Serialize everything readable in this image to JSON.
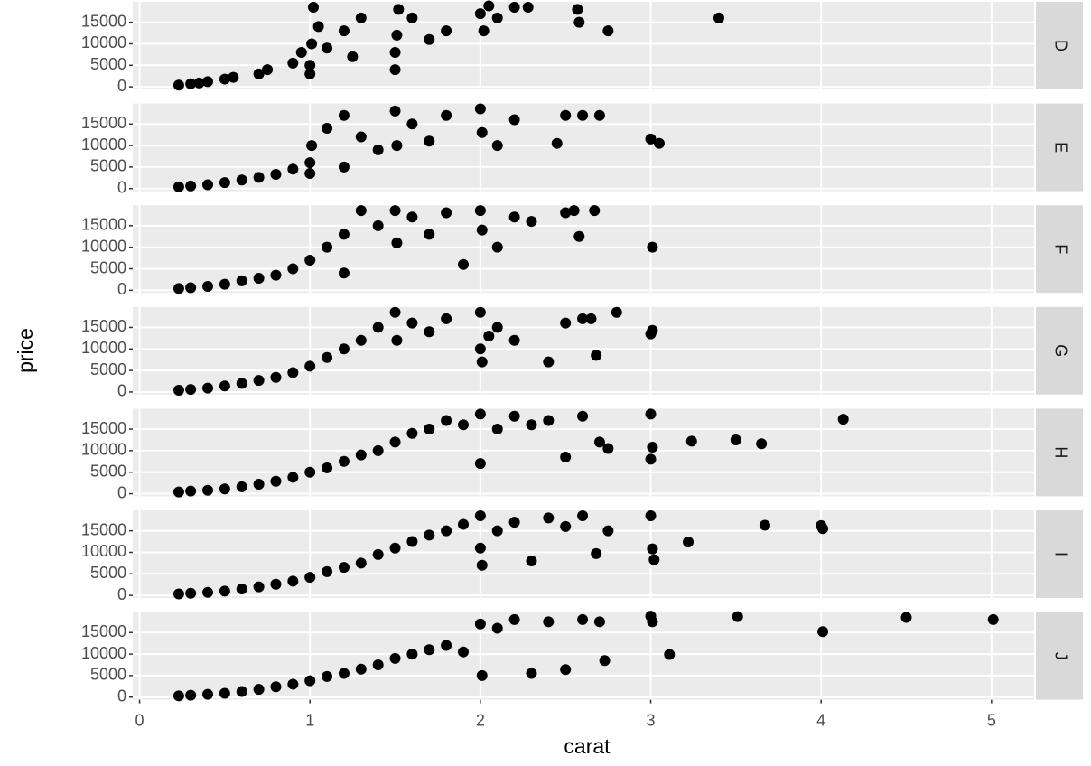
{
  "chart_data": {
    "type": "scatter",
    "xlabel": "carat",
    "ylabel": "price",
    "color": "#000000",
    "grid": true,
    "xlim": [
      -0.04,
      5.25
    ],
    "xticks": [
      0,
      1,
      2,
      3,
      4,
      5
    ],
    "ylim": [
      -599,
      19748
    ],
    "yticks": [
      0,
      5000,
      10000,
      15000
    ],
    "facets": [
      {
        "label": "D",
        "x": [
          0.23,
          0.3,
          0.35,
          0.4,
          0.5,
          0.55,
          0.7,
          0.75,
          0.9,
          0.95,
          1.0,
          1.01,
          1.02,
          1.05,
          1.1,
          1.2,
          1.25,
          1.3,
          1.5,
          1.51,
          1.52,
          1.6,
          1.7,
          1.8,
          2.0,
          2.02,
          2.05,
          2.1,
          2.2,
          2.28,
          2.57,
          2.58,
          2.75,
          3.4,
          1.0,
          1.5
        ],
        "values": [
          400,
          700,
          900,
          1200,
          1800,
          2200,
          3000,
          4000,
          5500,
          8000,
          5000,
          10000,
          18500,
          14000,
          9000,
          13000,
          7000,
          16000,
          4000,
          12000,
          18000,
          16000,
          11000,
          13000,
          17000,
          13000,
          18800,
          16000,
          18500,
          18500,
          18000,
          15000,
          13000,
          16000,
          3000,
          8000
        ]
      },
      {
        "label": "E",
        "x": [
          0.23,
          0.3,
          0.4,
          0.5,
          0.6,
          0.7,
          0.8,
          0.9,
          1.0,
          1.01,
          1.1,
          1.2,
          1.3,
          1.4,
          1.5,
          1.51,
          1.6,
          1.7,
          1.8,
          2.0,
          2.01,
          2.1,
          2.2,
          2.45,
          2.5,
          2.6,
          2.7,
          3.0,
          3.05,
          1.0,
          1.2
        ],
        "values": [
          400,
          600,
          900,
          1400,
          2000,
          2600,
          3300,
          4500,
          6000,
          10000,
          14000,
          17000,
          12000,
          9000,
          18000,
          10000,
          15000,
          11000,
          17000,
          18500,
          13000,
          10000,
          16000,
          10500,
          17000,
          17000,
          17000,
          11500,
          10500,
          3500,
          5000
        ]
      },
      {
        "label": "F",
        "x": [
          0.23,
          0.3,
          0.4,
          0.5,
          0.6,
          0.7,
          0.8,
          0.9,
          1.0,
          1.1,
          1.2,
          1.3,
          1.4,
          1.5,
          1.51,
          1.6,
          1.7,
          1.8,
          1.9,
          2.0,
          2.01,
          2.1,
          2.2,
          2.3,
          2.5,
          2.55,
          2.67,
          2.58,
          3.01,
          1.2
        ],
        "values": [
          400,
          600,
          900,
          1400,
          2200,
          2800,
          3500,
          5000,
          7000,
          10000,
          13000,
          18500,
          15000,
          18500,
          11000,
          17000,
          13000,
          18000,
          6000,
          18500,
          14000,
          10000,
          17000,
          16000,
          18000,
          18500,
          18500,
          12500,
          10000,
          4000
        ]
      },
      {
        "label": "G",
        "x": [
          0.23,
          0.3,
          0.4,
          0.5,
          0.6,
          0.7,
          0.8,
          0.9,
          1.0,
          1.1,
          1.2,
          1.3,
          1.4,
          1.5,
          1.51,
          1.6,
          1.7,
          1.8,
          2.0,
          2.01,
          2.05,
          2.1,
          2.2,
          2.4,
          2.5,
          2.6,
          2.65,
          2.8,
          3.0,
          3.01,
          2.68,
          2.0
        ],
        "values": [
          400,
          600,
          900,
          1400,
          2000,
          2700,
          3400,
          4500,
          6000,
          8000,
          10000,
          12000,
          15000,
          18500,
          12000,
          16000,
          14000,
          17000,
          18500,
          7000,
          13000,
          15000,
          12000,
          7000,
          16000,
          17000,
          17000,
          18500,
          13500,
          14300,
          8500,
          10000
        ]
      },
      {
        "label": "H",
        "x": [
          0.23,
          0.3,
          0.4,
          0.5,
          0.6,
          0.7,
          0.8,
          0.9,
          1.0,
          1.1,
          1.2,
          1.3,
          1.4,
          1.5,
          1.6,
          1.7,
          1.8,
          1.9,
          2.0,
          2.1,
          2.2,
          2.3,
          2.4,
          2.5,
          2.6,
          2.7,
          2.75,
          3.0,
          3.01,
          3.0,
          3.24,
          3.5,
          3.65,
          4.13,
          2.0
        ],
        "values": [
          400,
          600,
          800,
          1100,
          1600,
          2200,
          2900,
          3800,
          5000,
          6000,
          7500,
          9000,
          10000,
          12000,
          14000,
          15000,
          17000,
          16000,
          18500,
          15000,
          18000,
          16000,
          17000,
          8500,
          18000,
          12000,
          10500,
          18500,
          10800,
          8000,
          12200,
          12500,
          11600,
          17300,
          7000
        ]
      },
      {
        "label": "I",
        "x": [
          0.23,
          0.3,
          0.4,
          0.5,
          0.6,
          0.7,
          0.8,
          0.9,
          1.0,
          1.1,
          1.2,
          1.3,
          1.4,
          1.5,
          1.6,
          1.7,
          1.8,
          1.9,
          2.0,
          2.01,
          2.1,
          2.2,
          2.3,
          2.4,
          2.5,
          2.6,
          2.68,
          2.75,
          3.0,
          3.01,
          3.02,
          3.22,
          3.67,
          4.0,
          4.01,
          2.0
        ],
        "values": [
          350,
          500,
          700,
          1000,
          1500,
          2000,
          2600,
          3300,
          4200,
          5500,
          6500,
          7500,
          9500,
          11000,
          12500,
          14000,
          15000,
          16500,
          18500,
          7000,
          15000,
          17000,
          8000,
          18000,
          16000,
          18500,
          9700,
          15000,
          18500,
          10800,
          8300,
          12400,
          16300,
          16200,
          15500,
          11000
        ]
      },
      {
        "label": "J",
        "x": [
          0.23,
          0.3,
          0.4,
          0.5,
          0.6,
          0.7,
          0.8,
          0.9,
          1.0,
          1.1,
          1.2,
          1.3,
          1.4,
          1.5,
          1.6,
          1.7,
          1.8,
          1.9,
          2.0,
          2.01,
          2.1,
          2.2,
          2.3,
          2.4,
          2.5,
          2.6,
          2.7,
          2.73,
          3.0,
          3.01,
          3.11,
          3.51,
          4.01,
          4.5,
          5.01
        ],
        "values": [
          300,
          450,
          650,
          900,
          1300,
          1800,
          2400,
          3000,
          3800,
          4800,
          5500,
          6500,
          7500,
          9000,
          10000,
          11000,
          12000,
          10500,
          17000,
          5000,
          16000,
          18000,
          5500,
          17500,
          6400,
          18000,
          17500,
          8500,
          18800,
          17500,
          9900,
          18700,
          15200,
          18500,
          18000
        ]
      }
    ]
  }
}
